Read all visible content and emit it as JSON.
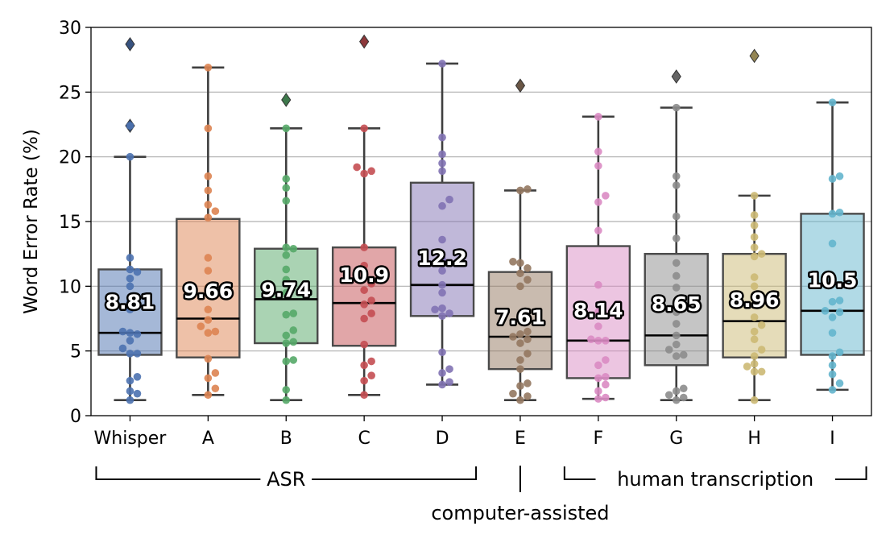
{
  "chart_data": {
    "type": "box",
    "ylabel": "Word Error Rate (%)",
    "ylim": [
      0,
      30
    ],
    "yticks": [
      0,
      5,
      10,
      15,
      20,
      25,
      30
    ],
    "grid": "horizontal",
    "categories": [
      "Whisper",
      "A",
      "B",
      "C",
      "D",
      "E",
      "F",
      "G",
      "H",
      "I"
    ],
    "series": [
      {
        "category": "Whisper",
        "color": "#4c72b0",
        "whisker_low": 1.2,
        "q1": 4.7,
        "median": 6.4,
        "q3": 11.3,
        "whisker_high": 20.0,
        "mean": 8.81,
        "outliers": [
          28.7,
          22.4
        ],
        "points": [
          1.2,
          1.7,
          1.9,
          2.7,
          3.0,
          4.8,
          4.8,
          5.2,
          5.8,
          6.3,
          6.4,
          6.5,
          8.2,
          8.8,
          10.0,
          10.6,
          11.1,
          11.3,
          12.2,
          20.0,
          22.4
        ]
      },
      {
        "category": "A",
        "color": "#dd8452",
        "whisker_low": 1.6,
        "q1": 4.5,
        "median": 7.5,
        "q3": 15.2,
        "whisker_high": 26.9,
        "mean": 9.66,
        "outliers": [],
        "points": [
          1.6,
          2.1,
          2.9,
          3.3,
          4.4,
          6.4,
          6.5,
          6.9,
          7.4,
          8.2,
          9.9,
          11.2,
          12.2,
          15.3,
          15.8,
          16.3,
          17.4,
          18.5,
          22.2,
          26.9
        ]
      },
      {
        "category": "B",
        "color": "#55a868",
        "whisker_low": 1.2,
        "q1": 5.6,
        "median": 9.0,
        "q3": 12.9,
        "whisker_high": 22.2,
        "mean": 9.74,
        "outliers": [
          24.4
        ],
        "points": [
          1.2,
          2.0,
          4.2,
          4.3,
          5.6,
          5.7,
          6.2,
          6.6,
          7.8,
          7.9,
          9.5,
          10.5,
          11.3,
          12.4,
          12.9,
          13.0,
          16.6,
          17.6,
          18.3,
          22.2
        ]
      },
      {
        "category": "C",
        "color": "#c44e52",
        "whisker_low": 1.6,
        "q1": 5.4,
        "median": 8.7,
        "q3": 13.0,
        "whisker_high": 22.2,
        "mean": 10.9,
        "outliers": [
          28.9
        ],
        "points": [
          1.6,
          2.7,
          3.1,
          3.9,
          4.2,
          5.5,
          7.5,
          7.9,
          8.6,
          8.9,
          9.7,
          10.2,
          11.6,
          13.0,
          18.7,
          18.9,
          19.2,
          22.2
        ]
      },
      {
        "category": "D",
        "color": "#8172b3",
        "whisker_low": 2.4,
        "q1": 7.7,
        "median": 10.1,
        "q3": 18.0,
        "whisker_high": 27.2,
        "mean": 12.2,
        "outliers": [],
        "points": [
          2.4,
          2.6,
          3.3,
          3.6,
          4.9,
          7.7,
          7.9,
          8.2,
          8.3,
          9.5,
          10.1,
          11.2,
          12.1,
          13.6,
          16.2,
          16.7,
          18.9,
          19.5,
          20.2,
          21.5,
          27.2
        ]
      },
      {
        "category": "E",
        "color": "#937860",
        "whisker_low": 1.2,
        "q1": 3.6,
        "median": 6.1,
        "q3": 11.1,
        "whisker_high": 17.4,
        "mean": 7.61,
        "outliers": [
          25.5
        ],
        "points": [
          1.2,
          1.5,
          1.7,
          2.3,
          2.5,
          3.6,
          4.3,
          4.8,
          5.6,
          5.9,
          6.1,
          6.3,
          6.5,
          10.0,
          10.5,
          11.0,
          11.4,
          11.8,
          11.9,
          17.4,
          17.5
        ]
      },
      {
        "category": "F",
        "color": "#da8bc3",
        "whisker_low": 1.3,
        "q1": 2.9,
        "median": 5.8,
        "q3": 13.1,
        "whisker_high": 23.1,
        "mean": 8.14,
        "outliers": [],
        "points": [
          1.3,
          1.4,
          1.9,
          2.4,
          2.9,
          3.0,
          3.9,
          4.3,
          5.8,
          5.8,
          5.9,
          6.9,
          8.0,
          10.1,
          14.3,
          16.5,
          17.0,
          19.3,
          20.4,
          23.1
        ]
      },
      {
        "category": "G",
        "color": "#8c8c8c",
        "whisker_low": 1.2,
        "q1": 3.9,
        "median": 6.2,
        "q3": 12.5,
        "whisker_high": 23.8,
        "mean": 8.65,
        "outliers": [
          26.2
        ],
        "points": [
          1.2,
          1.4,
          1.6,
          1.9,
          2.1,
          4.6,
          4.7,
          5.1,
          5.5,
          6.2,
          7.1,
          8.0,
          9.9,
          10.8,
          11.8,
          13.7,
          15.4,
          17.8,
          18.5,
          23.8
        ]
      },
      {
        "category": "H",
        "color": "#ccb974",
        "whisker_low": 1.2,
        "q1": 4.5,
        "median": 7.3,
        "q3": 12.5,
        "whisker_high": 17.0,
        "mean": 8.96,
        "outliers": [
          27.8
        ],
        "points": [
          1.2,
          3.4,
          3.4,
          3.8,
          4.0,
          4.6,
          5.1,
          5.9,
          6.5,
          7.0,
          7.6,
          10.0,
          10.7,
          12.3,
          12.5,
          13.0,
          13.8,
          14.7,
          15.5,
          17.0
        ]
      },
      {
        "category": "I",
        "color": "#64b5cd",
        "whisker_low": 2.0,
        "q1": 4.7,
        "median": 8.1,
        "q3": 15.6,
        "whisker_high": 24.2,
        "mean": 10.5,
        "outliers": [],
        "points": [
          2.0,
          2.5,
          3.2,
          3.9,
          4.6,
          4.9,
          6.4,
          7.6,
          8.0,
          8.1,
          8.8,
          8.9,
          10.5,
          13.3,
          15.6,
          15.7,
          18.3,
          18.5,
          24.2
        ]
      }
    ],
    "groups": [
      {
        "label": "ASR",
        "from": "Whisper",
        "to": "D",
        "style": "bracket"
      },
      {
        "label": "computer-assisted",
        "from": "E",
        "to": "E",
        "style": "tick"
      },
      {
        "label": "human transcription",
        "from": "F",
        "to": "I",
        "style": "bracket"
      }
    ]
  }
}
